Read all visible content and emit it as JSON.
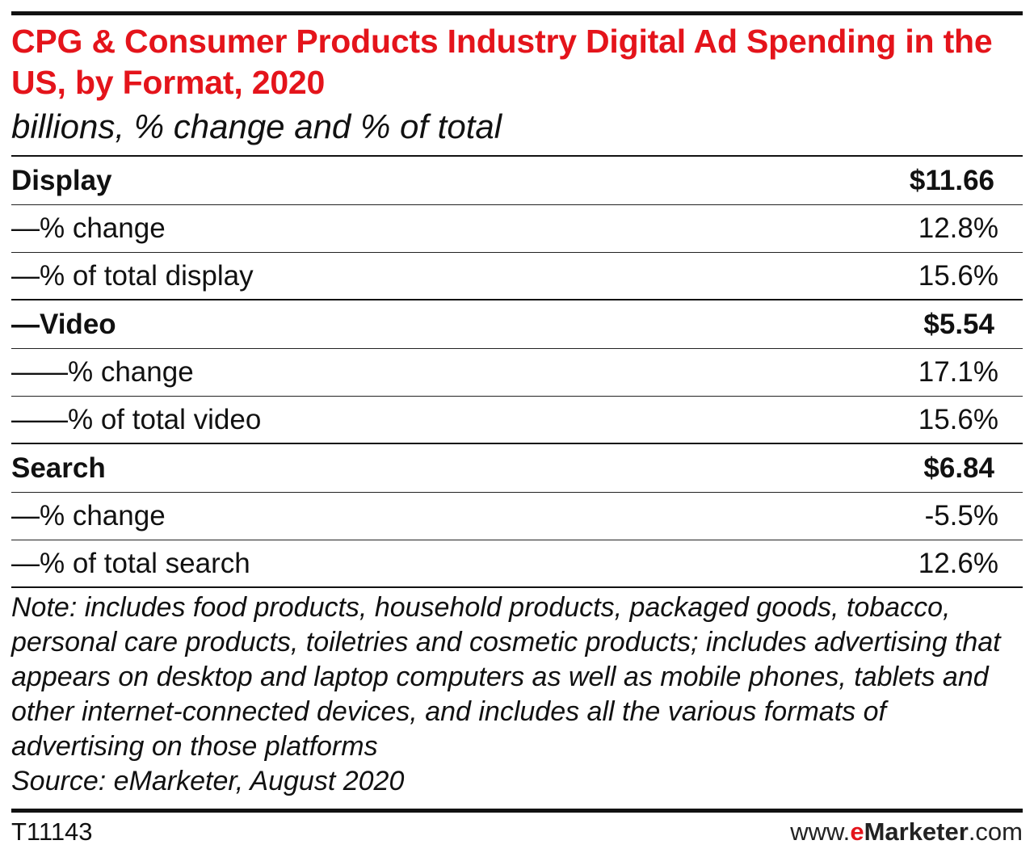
{
  "header": {
    "title": "CPG & Consumer Products Industry Digital Ad Spending in the US, by Format, 2020",
    "subtitle": "billions, % change and % of total"
  },
  "chart_data": {
    "type": "table",
    "title": "CPG & Consumer Products Industry Digital Ad Spending in the US, by Format, 2020",
    "subtitle": "billions, % change and % of total",
    "rows": [
      {
        "label": "Display",
        "value": "$11.66"
      },
      {
        "label": "—% change",
        "value": "12.8%"
      },
      {
        "label": "—% of total display",
        "value": "15.6%"
      },
      {
        "label": "—Video",
        "value": "$5.54"
      },
      {
        "label": "——% change",
        "value": "17.1%"
      },
      {
        "label": "——% of total video",
        "value": "15.6%"
      },
      {
        "label": "Search",
        "value": "$6.84"
      },
      {
        "label": "—% change",
        "value": "-5.5%"
      },
      {
        "label": "—% of total search",
        "value": "12.6%"
      }
    ]
  },
  "notes": {
    "note": "Note: includes food products, household products, packaged goods, tobacco, personal care products, toiletries and cosmetic products; includes advertising that appears on desktop and laptop computers as well as mobile phones, tablets and other internet-connected devices, and includes all the various formats of advertising on those platforms",
    "source": "Source: eMarketer, August 2020"
  },
  "footer": {
    "id": "T11143",
    "brand_prefix": "www.",
    "brand_e": "e",
    "brand_name": "Marketer",
    "brand_suffix": ".com"
  },
  "colors": {
    "title": "#e4141b",
    "text": "#111111"
  }
}
